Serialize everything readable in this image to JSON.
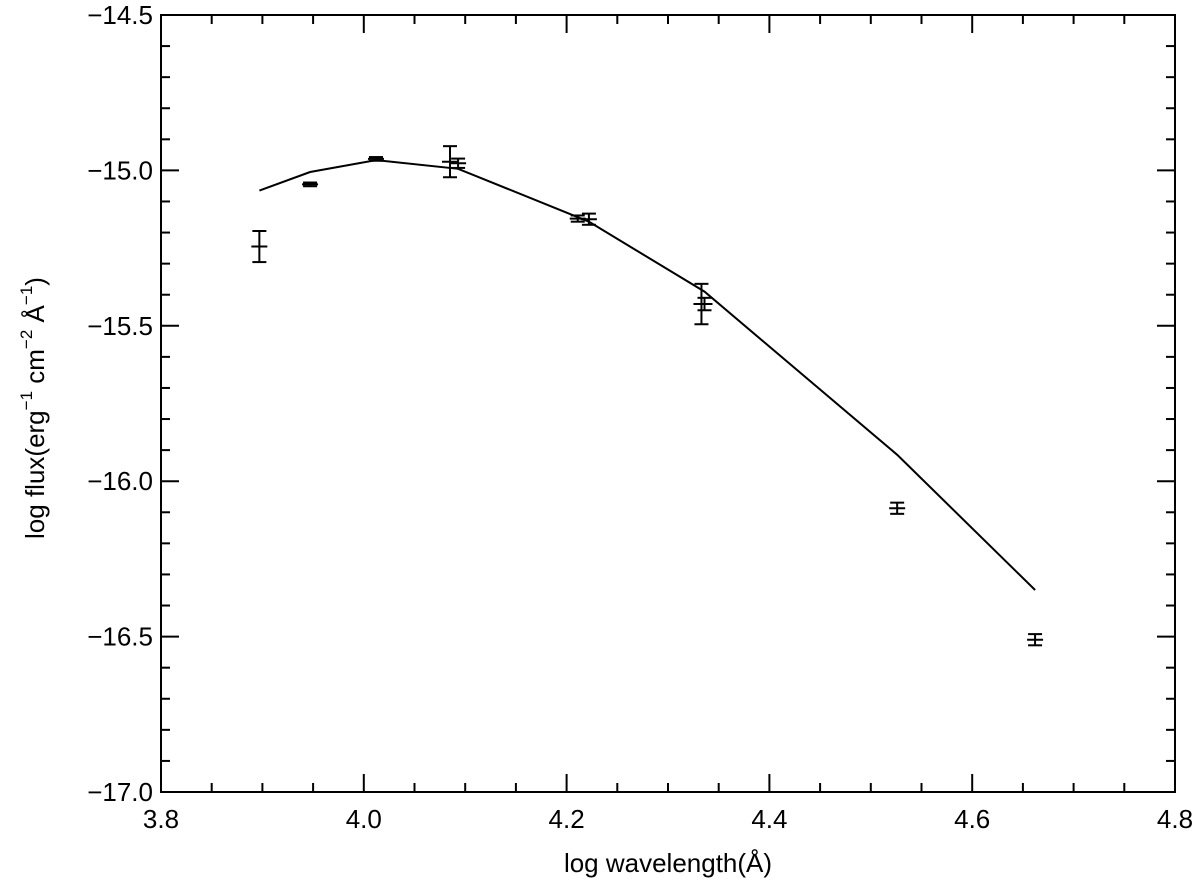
{
  "chart_data": {
    "type": "scatter",
    "title": "",
    "xlabel": "log wavelength(Å)",
    "ylabel": {
      "parts": [
        {
          "text": "log flux(erg",
          "sup": false
        },
        {
          "text": "−1",
          "sup": true
        },
        {
          "text": " cm",
          "sup": false
        },
        {
          "text": "−2",
          "sup": true
        },
        {
          "text": " Å",
          "sup": false
        },
        {
          "text": "−1",
          "sup": true
        },
        {
          "text": ")",
          "sup": false
        }
      ]
    },
    "xlim": [
      3.8,
      4.8
    ],
    "ylim": [
      -17.0,
      -14.5
    ],
    "xticks": [
      {
        "value": 3.8,
        "label": "3.8"
      },
      {
        "value": 4.0,
        "label": "4.0"
      },
      {
        "value": 4.2,
        "label": "4.2"
      },
      {
        "value": 4.4,
        "label": "4.4"
      },
      {
        "value": 4.6,
        "label": "4.6"
      },
      {
        "value": 4.8,
        "label": "4.8"
      }
    ],
    "yticks": [
      {
        "value": -14.5,
        "label": "−14.5"
      },
      {
        "value": -15.0,
        "label": "−15.0"
      },
      {
        "value": -15.5,
        "label": "−15.5"
      },
      {
        "value": -16.0,
        "label": "−16.0"
      },
      {
        "value": -16.5,
        "label": "−16.5"
      },
      {
        "value": -17.0,
        "label": "−17.0"
      }
    ],
    "x_minor_step": 0.05,
    "y_minor_step": 0.1,
    "grid": false,
    "legend": "none",
    "color": "#000000",
    "series": [
      {
        "type": "errorbar",
        "points": [
          {
            "x": 3.897,
            "y": -15.245,
            "err": 0.05
          },
          {
            "x": 3.947,
            "y": -15.045,
            "err": 0.006
          },
          {
            "x": 4.012,
            "y": -14.963,
            "err": 0.006
          },
          {
            "x": 4.085,
            "y": -14.972,
            "err": 0.05
          },
          {
            "x": 4.093,
            "y": -14.977,
            "err": 0.015
          },
          {
            "x": 4.211,
            "y": -15.155,
            "err": 0.01
          },
          {
            "x": 4.222,
            "y": -15.157,
            "err": 0.018
          },
          {
            "x": 4.333,
            "y": -15.43,
            "err": 0.065
          },
          {
            "x": 4.336,
            "y": -15.43,
            "err": 0.02
          },
          {
            "x": 4.526,
            "y": -16.087,
            "err": 0.018
          },
          {
            "x": 4.662,
            "y": -16.51,
            "err": 0.018
          }
        ]
      },
      {
        "type": "line",
        "points": [
          {
            "x": 3.897,
            "y": -15.065
          },
          {
            "x": 3.947,
            "y": -15.005
          },
          {
            "x": 4.012,
            "y": -14.967
          },
          {
            "x": 4.093,
            "y": -14.995
          },
          {
            "x": 4.222,
            "y": -15.165
          },
          {
            "x": 4.336,
            "y": -15.39
          },
          {
            "x": 4.526,
            "y": -15.915
          },
          {
            "x": 4.662,
            "y": -16.35
          }
        ]
      }
    ]
  }
}
